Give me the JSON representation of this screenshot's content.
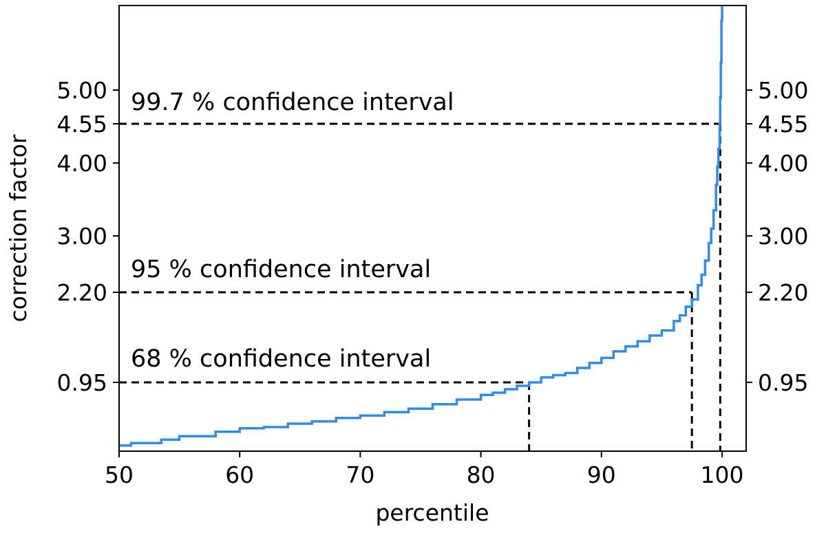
{
  "chart_data": {
    "type": "line",
    "xlabel": "percentile",
    "ylabel": "correction factor",
    "xlim": [
      50,
      102
    ],
    "ylim": [
      0.35,
      6.0
    ],
    "x_ticks": [
      50,
      60,
      70,
      80,
      90,
      100
    ],
    "y_ticks_left": [
      "0.95",
      "2.20",
      "3.00",
      "4.00",
      "4.55",
      "5.00"
    ],
    "y_ticks_right": [
      "0.95",
      "2.20",
      "3.00",
      "4.00",
      "4.55",
      "5.00"
    ],
    "line_color": "#2e8bf0",
    "series": [
      {
        "x": [
          50,
          51,
          52,
          53.5,
          55,
          56,
          58,
          60,
          62,
          64,
          66,
          68,
          70,
          72,
          74,
          76,
          78,
          80,
          81,
          82,
          83,
          84,
          85,
          86,
          87,
          88,
          89,
          90,
          91,
          92,
          93,
          94,
          95,
          96,
          96.5,
          97,
          97.5,
          98,
          98.3,
          98.6,
          98.9,
          99.1,
          99.3,
          99.5,
          99.6,
          99.7,
          99.8,
          99.85,
          99.9,
          99.95,
          100
        ],
        "y": [
          0.4,
          0.42,
          0.42,
          0.45,
          0.48,
          0.48,
          0.52,
          0.55,
          0.56,
          0.59,
          0.61,
          0.64,
          0.66,
          0.69,
          0.72,
          0.76,
          0.8,
          0.84,
          0.86,
          0.89,
          0.92,
          0.95,
          1.02,
          1.05,
          1.08,
          1.15,
          1.22,
          1.29,
          1.38,
          1.45,
          1.52,
          1.6,
          1.67,
          1.8,
          1.88,
          2.0,
          2.1,
          2.3,
          2.45,
          2.65,
          2.9,
          3.1,
          3.35,
          3.7,
          3.95,
          4.2,
          4.55,
          4.9,
          5.4,
          6.0,
          6.6
        ]
      }
    ],
    "reference_lines": [
      {
        "percentile": 84.0,
        "value": 0.95,
        "label": "68 % confidence interval"
      },
      {
        "percentile": 97.5,
        "value": 2.2,
        "label": "95 % confidence interval"
      },
      {
        "percentile": 99.85,
        "value": 4.55,
        "label": "99.7 % confidence interval"
      }
    ]
  }
}
